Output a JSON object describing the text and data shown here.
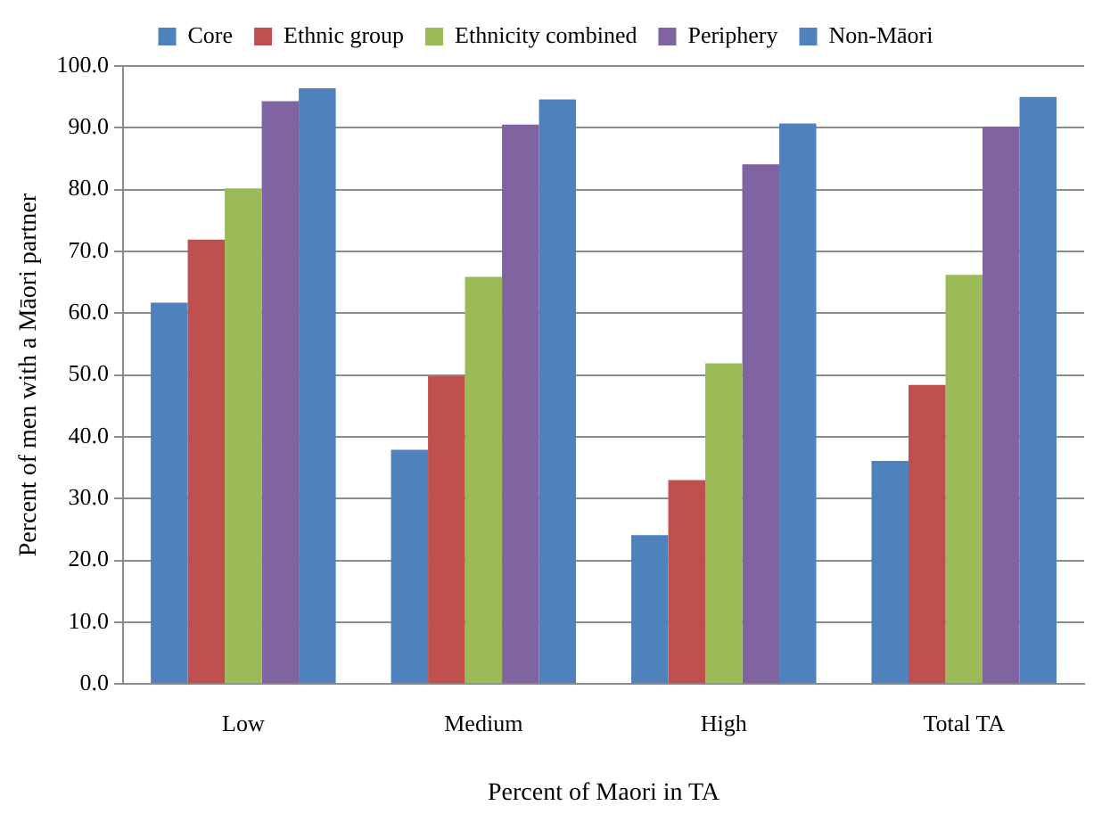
{
  "chart_data": {
    "type": "bar",
    "xlabel": "Percent of Maori in TA",
    "ylabel": "Percent of men with a Māori partner",
    "categories": [
      "Low",
      "Medium",
      "High",
      "Total TA"
    ],
    "series": [
      {
        "name": "Core",
        "color": "#4f81bd",
        "values": [
          61.7,
          37.9,
          24.1,
          36.1
        ]
      },
      {
        "name": "Ethnic group",
        "color": "#c0504d",
        "values": [
          71.9,
          49.8,
          33.0,
          48.4
        ]
      },
      {
        "name": "Ethnicity combined",
        "color": "#9bbb59",
        "values": [
          80.2,
          65.9,
          51.9,
          66.2
        ]
      },
      {
        "name": "Periphery",
        "color": "#8064a2",
        "values": [
          94.3,
          90.5,
          84.1,
          90.2
        ]
      },
      {
        "name": "Non-Māori",
        "color": "#4f81bd",
        "values": [
          96.4,
          94.6,
          90.7,
          95.0
        ]
      }
    ],
    "ylim": [
      0,
      100
    ],
    "yticks": [
      {
        "value": 0,
        "label": "0.0"
      },
      {
        "value": 10,
        "label": "10.0"
      },
      {
        "value": 20,
        "label": "20.0"
      },
      {
        "value": 30,
        "label": "30.0"
      },
      {
        "value": 40,
        "label": "40.0"
      },
      {
        "value": 50,
        "label": "50.0"
      },
      {
        "value": 60,
        "label": "60.0"
      },
      {
        "value": 70,
        "label": "70.0"
      },
      {
        "value": 80,
        "label": "80.0"
      },
      {
        "value": 90,
        "label": "90.0"
      },
      {
        "value": 100,
        "label": "100.0"
      }
    ],
    "grid": "y",
    "legend": "top"
  }
}
